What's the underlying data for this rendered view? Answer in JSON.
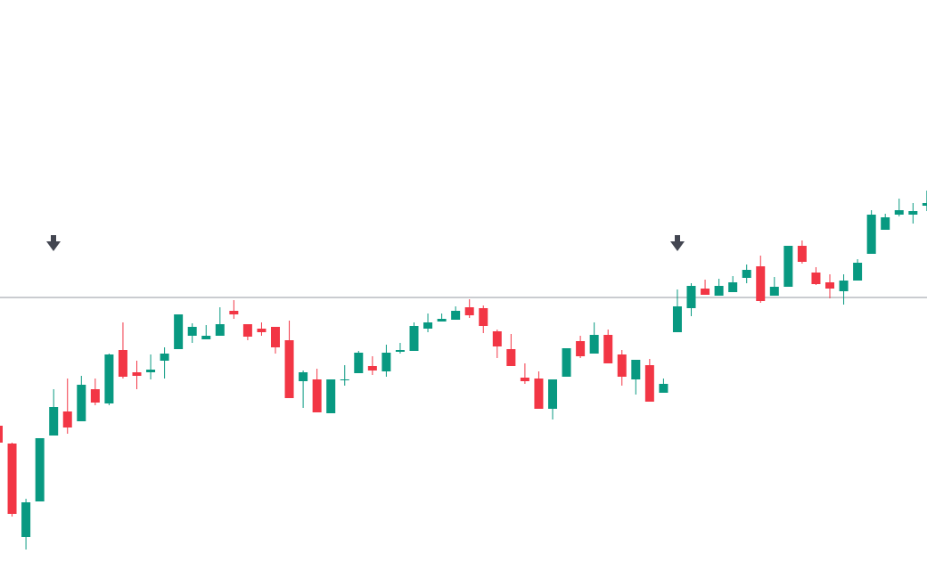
{
  "chart_data": {
    "type": "candlestick",
    "open": [
      162,
      142,
      37,
      77,
      151,
      178,
      167,
      203,
      187,
      247,
      222,
      222,
      235,
      248,
      263,
      259,
      263,
      291,
      276,
      271,
      273,
      258,
      212,
      214,
      176,
      213,
      221,
      229,
      223,
      245,
      246,
      271,
      279,
      281,
      295,
      294,
      268,
      248,
      216,
      215,
      181,
      217,
      257,
      243,
      264,
      242,
      214,
      230,
      199,
      267,
      294,
      316,
      308,
      312,
      328,
      341,
      308,
      318,
      364,
      334,
      323,
      313,
      325,
      355,
      382,
      399,
      399,
      409
    ],
    "high": [
      162,
      143,
      80,
      148,
      203,
      215,
      218,
      215,
      243,
      278,
      235,
      242,
      250,
      287,
      277,
      275,
      295,
      303,
      276,
      278,
      273,
      280,
      224,
      226,
      214,
      230,
      246,
      240,
      253,
      255,
      278,
      288,
      288,
      296,
      304,
      297,
      270,
      265,
      232,
      223,
      214,
      249,
      263,
      278,
      270,
      247,
      236,
      237,
      215,
      315,
      322,
      326,
      327,
      330,
      343,
      353,
      329,
      364,
      370,
      340,
      332,
      332,
      349,
      404,
      400,
      417,
      412,
      426
    ],
    "low": [
      143,
      60,
      23,
      77,
      151,
      153,
      167,
      185,
      185,
      215,
      203,
      214,
      215,
      248,
      255,
      259,
      263,
      282,
      258,
      263,
      243,
      193,
      182,
      177,
      176,
      207,
      221,
      219,
      217,
      243,
      246,
      267,
      279,
      281,
      283,
      266,
      238,
      229,
      209,
      181,
      169,
      217,
      238,
      243,
      232,
      207,
      197,
      189,
      199,
      267,
      285,
      309,
      308,
      312,
      322,
      300,
      308,
      318,
      344,
      320,
      305,
      298,
      325,
      355,
      382,
      397,
      389,
      403
    ],
    "close": [
      143,
      63,
      76,
      148,
      183,
      160,
      208,
      188,
      242,
      217,
      218,
      225,
      243,
      287,
      273,
      263,
      276,
      287,
      262,
      267,
      250,
      193,
      222,
      177,
      214,
      214,
      244,
      224,
      244,
      247,
      274,
      278,
      282,
      291,
      286,
      274,
      251,
      229,
      212,
      181,
      214,
      249,
      240,
      264,
      232,
      217,
      236,
      189,
      209,
      296,
      319,
      309,
      319,
      323,
      337,
      302,
      318,
      364,
      346,
      321,
      316,
      325,
      345,
      399,
      396,
      404,
      403,
      412
    ],
    "up_color": "#089981",
    "down_color": "#f23645",
    "hline": 306,
    "ylim": [
      0,
      640
    ]
  }
}
